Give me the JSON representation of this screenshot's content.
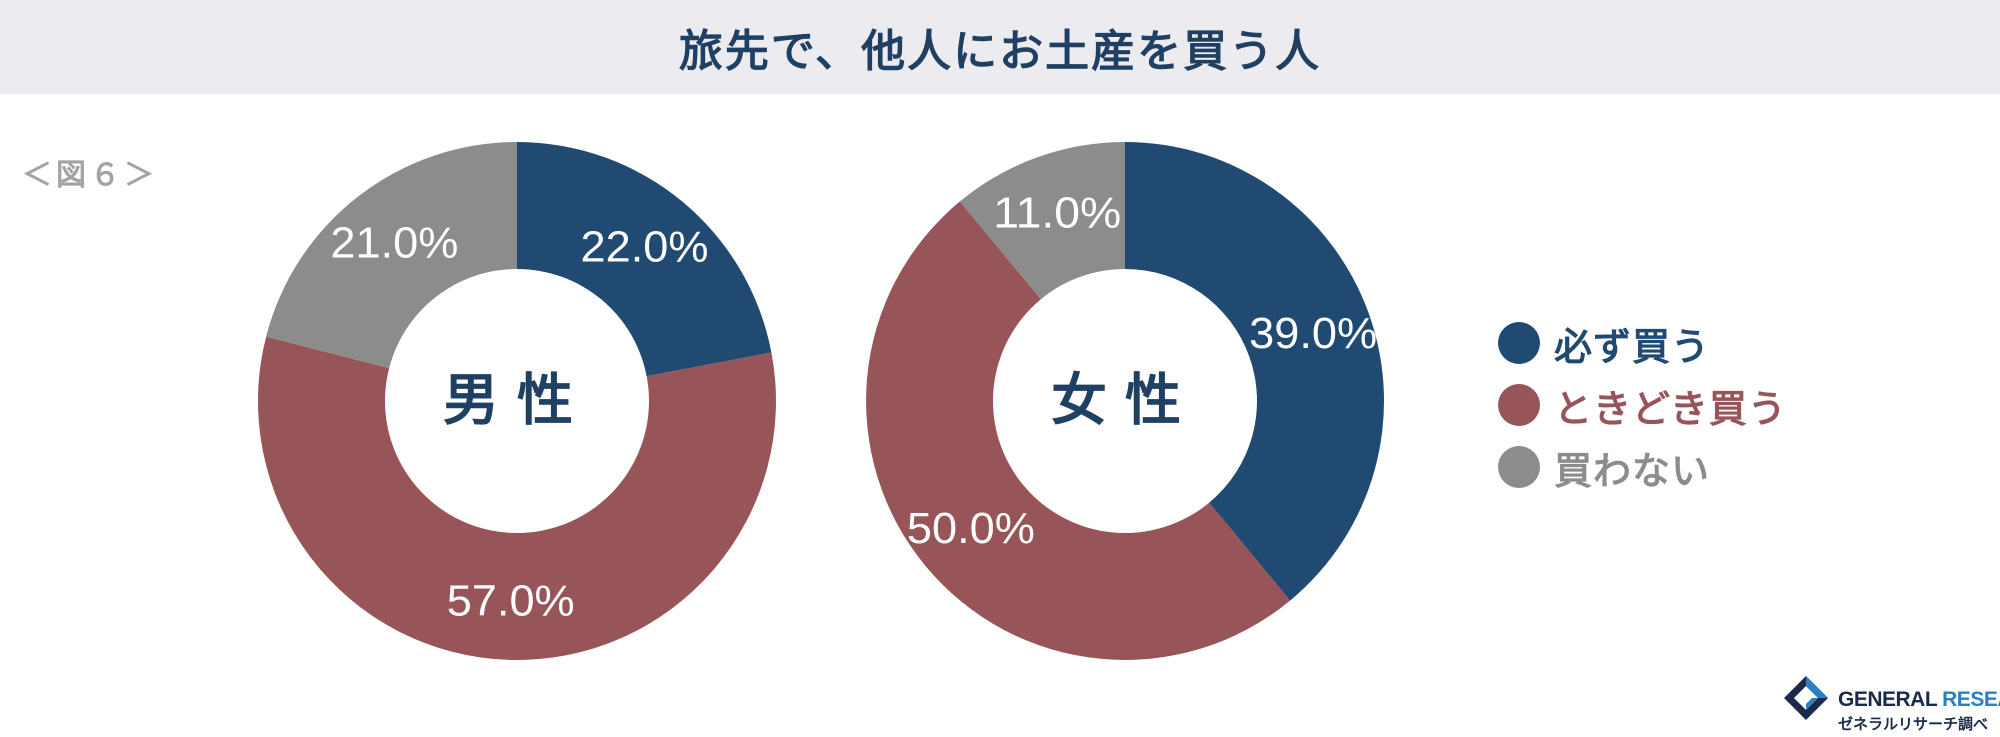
{
  "title": "旅先で、他人にお土産を買う人",
  "figure_label": "＜図６＞",
  "colors": {
    "always": "#204a72",
    "sometimes": "#97555a",
    "never": "#8c8c8c"
  },
  "legend": [
    {
      "label": "必ず買う",
      "color": "#204a72"
    },
    {
      "label": "ときどき買う",
      "color": "#97555a"
    },
    {
      "label": "買わない",
      "color": "#8c8c8c"
    }
  ],
  "chart_data": [
    {
      "type": "pie",
      "center_label": "男性",
      "categories": [
        "必ず買う",
        "ときどき買う",
        "買わない"
      ],
      "values": [
        22.0,
        57.0,
        21.0
      ],
      "value_labels": [
        "22.0%",
        "57.0%",
        "21.0%"
      ],
      "colors": [
        "#204a72",
        "#97555a",
        "#8c8c8c"
      ]
    },
    {
      "type": "pie",
      "center_label": "女性",
      "categories": [
        "必ず買う",
        "ときどき買う",
        "買わない"
      ],
      "values": [
        39.0,
        50.0,
        11.0
      ],
      "value_labels": [
        "39.0%",
        "50.0%",
        "11.0%"
      ],
      "colors": [
        "#204a72",
        "#97555a",
        "#8c8c8c"
      ]
    }
  ],
  "logo": {
    "name_part1": "GENERAL",
    "name_part2": "RESEARCH",
    "subtitle": "ゼネラルリサーチ調べ"
  }
}
